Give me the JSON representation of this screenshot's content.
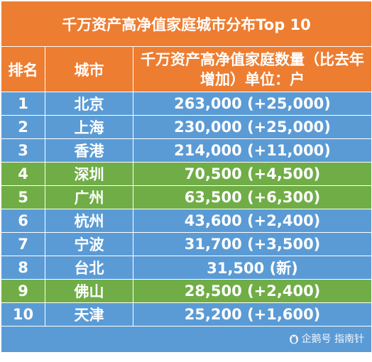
{
  "title": "千万资产高净值家庭城市分布Top 10",
  "headers": {
    "rank": "排名",
    "city": "城市",
    "count": "千万资产高净值家庭数量（比去年增加）单位：户"
  },
  "rows": [
    {
      "rank": "1",
      "city": "北京",
      "value": "263,000 (+25,000)",
      "color": "#5b9bd5"
    },
    {
      "rank": "2",
      "city": "上海",
      "value": "230,000 (+25,000)",
      "color": "#5b9bd5"
    },
    {
      "rank": "3",
      "city": "香港",
      "value": "214,000 (+11,000)",
      "color": "#5b9bd5"
    },
    {
      "rank": "4",
      "city": "深圳",
      "value": "70,500 (+4,500)",
      "color": "#70ad47"
    },
    {
      "rank": "5",
      "city": "广州",
      "value": "63,500 (+6,300)",
      "color": "#70ad47"
    },
    {
      "rank": "6",
      "city": "杭州",
      "value": "43,600 (+2,400)",
      "color": "#5b9bd5"
    },
    {
      "rank": "7",
      "city": "宁波",
      "value": "31,700 (+3,500)",
      "color": "#5b9bd5"
    },
    {
      "rank": "8",
      "city": "台北",
      "value": "31,500 (新)",
      "color": "#5b9bd5"
    },
    {
      "rank": "9",
      "city": "佛山",
      "value": "28,500 (+2,400)",
      "color": "#70ad47"
    },
    {
      "rank": "10",
      "city": "天津",
      "value": "25,200 (+1,600)",
      "color": "#5b9bd5"
    }
  ],
  "watermark": {
    "icon": "penguin-icon",
    "text": "企鹅号 指南针"
  },
  "colors": {
    "header": "#ed7d31",
    "blue": "#5b9bd5",
    "green": "#70ad47",
    "text": "#ffffff"
  }
}
